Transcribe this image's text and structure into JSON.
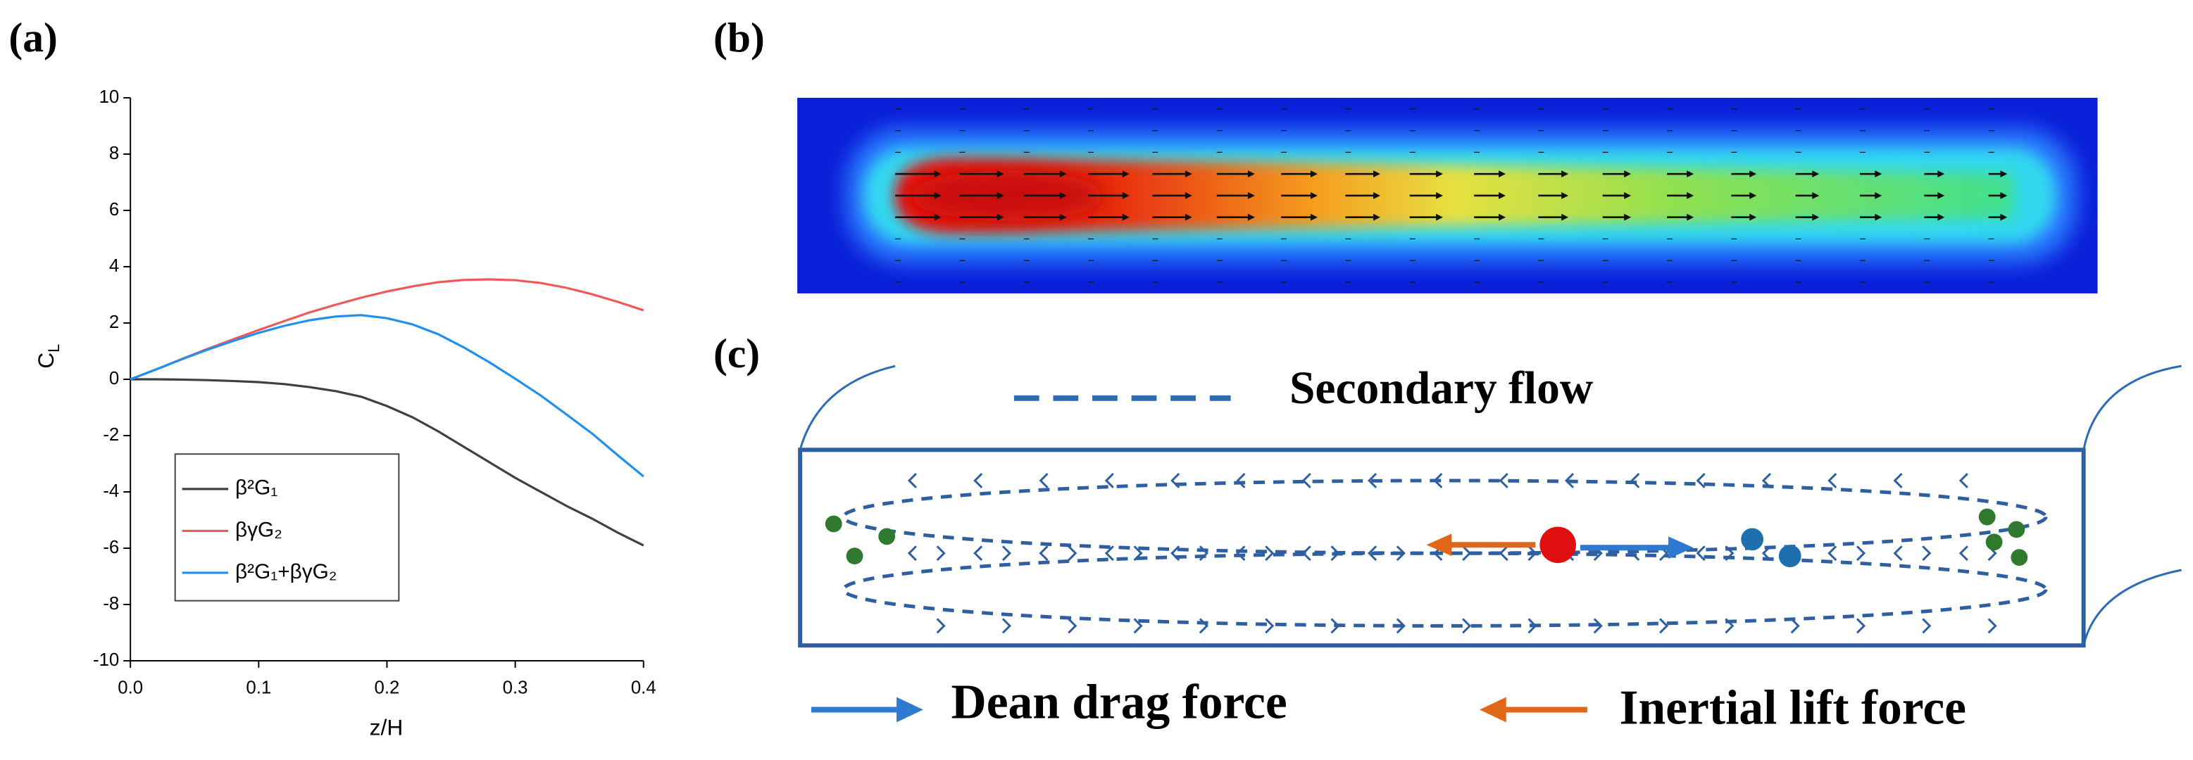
{
  "panels": {
    "a": "(a)",
    "b": "(b)",
    "c": "(c)"
  },
  "chart_data": {
    "type": "line",
    "xlabel": "z/H",
    "ylabel": {
      "text": "C",
      "subscript": "L"
    },
    "x": [
      0,
      0.02,
      0.04,
      0.06,
      0.08,
      0.1,
      0.12,
      0.14,
      0.16,
      0.18,
      0.2,
      0.22,
      0.24,
      0.26,
      0.28,
      0.3,
      0.32,
      0.34,
      0.36,
      0.38,
      0.4
    ],
    "series": [
      {
        "name": "β²G₁",
        "color": "#404040",
        "values": [
          0,
          0,
          -0.01,
          -0.03,
          -0.06,
          -0.1,
          -0.17,
          -0.28,
          -0.42,
          -0.62,
          -0.95,
          -1.35,
          -1.85,
          -2.4,
          -2.95,
          -3.5,
          -4.0,
          -4.5,
          -4.95,
          -5.45,
          -5.9
        ]
      },
      {
        "name": "βγG₂",
        "color": "#f0585a",
        "values": [
          0,
          0.35,
          0.72,
          1.08,
          1.42,
          1.75,
          2.07,
          2.38,
          2.65,
          2.9,
          3.12,
          3.3,
          3.45,
          3.53,
          3.55,
          3.52,
          3.42,
          3.25,
          3.02,
          2.75,
          2.45
        ]
      },
      {
        "name": "β²G₁+βγG₂",
        "color": "#1f8ff0",
        "values": [
          0,
          0.35,
          0.71,
          1.05,
          1.36,
          1.65,
          1.9,
          2.1,
          2.23,
          2.28,
          2.17,
          1.95,
          1.6,
          1.13,
          0.6,
          0.02,
          -0.58,
          -1.25,
          -1.93,
          -2.7,
          -3.45
        ]
      }
    ],
    "xlim": [
      0,
      0.4
    ],
    "xticks": [
      {
        "value": 0,
        "label": "0.0"
      },
      0.1,
      0.2,
      0.3,
      0.4
    ],
    "ylim": [
      -10,
      10
    ],
    "yticks": [
      -10,
      -8,
      -6,
      -4,
      -2,
      0,
      2,
      4,
      6,
      8,
      10
    ],
    "legend": "lower left"
  },
  "diagram": {
    "secondary_flow": "Secondary flow",
    "dean_drag": "Dean drag force",
    "inertial_lift": "Inertial lift force"
  }
}
